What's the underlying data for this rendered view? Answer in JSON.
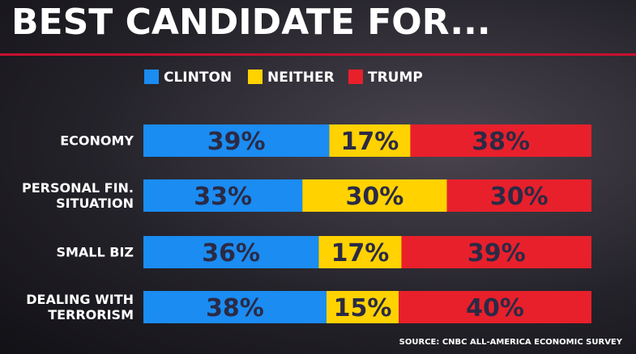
{
  "chart_data": {
    "type": "stacked-bar",
    "title": "BEST CANDIDATE FOR...",
    "categories": [
      "ECONOMY",
      "PERSONAL FIN. SITUATION",
      "SMALL BIZ",
      "DEALING WITH TERRORISM"
    ],
    "series": [
      {
        "name": "CLINTON",
        "color": "#1a8cf2",
        "values": [
          39,
          33,
          36,
          38
        ],
        "value_labels": [
          "39%",
          "33%",
          "36%",
          "38%"
        ]
      },
      {
        "name": "NEITHER",
        "color": "#ffd200",
        "values": [
          17,
          30,
          17,
          15
        ],
        "value_labels": [
          "17%",
          "30%",
          "17%",
          "15%"
        ]
      },
      {
        "name": "TRUMP",
        "color": "#e8202b",
        "values": [
          38,
          30,
          39,
          40
        ],
        "value_labels": [
          "38%",
          "30%",
          "39%",
          "40%"
        ]
      }
    ],
    "source": "SOURCE: CNBC ALL-AMERICA ECONOMIC SURVEY"
  }
}
